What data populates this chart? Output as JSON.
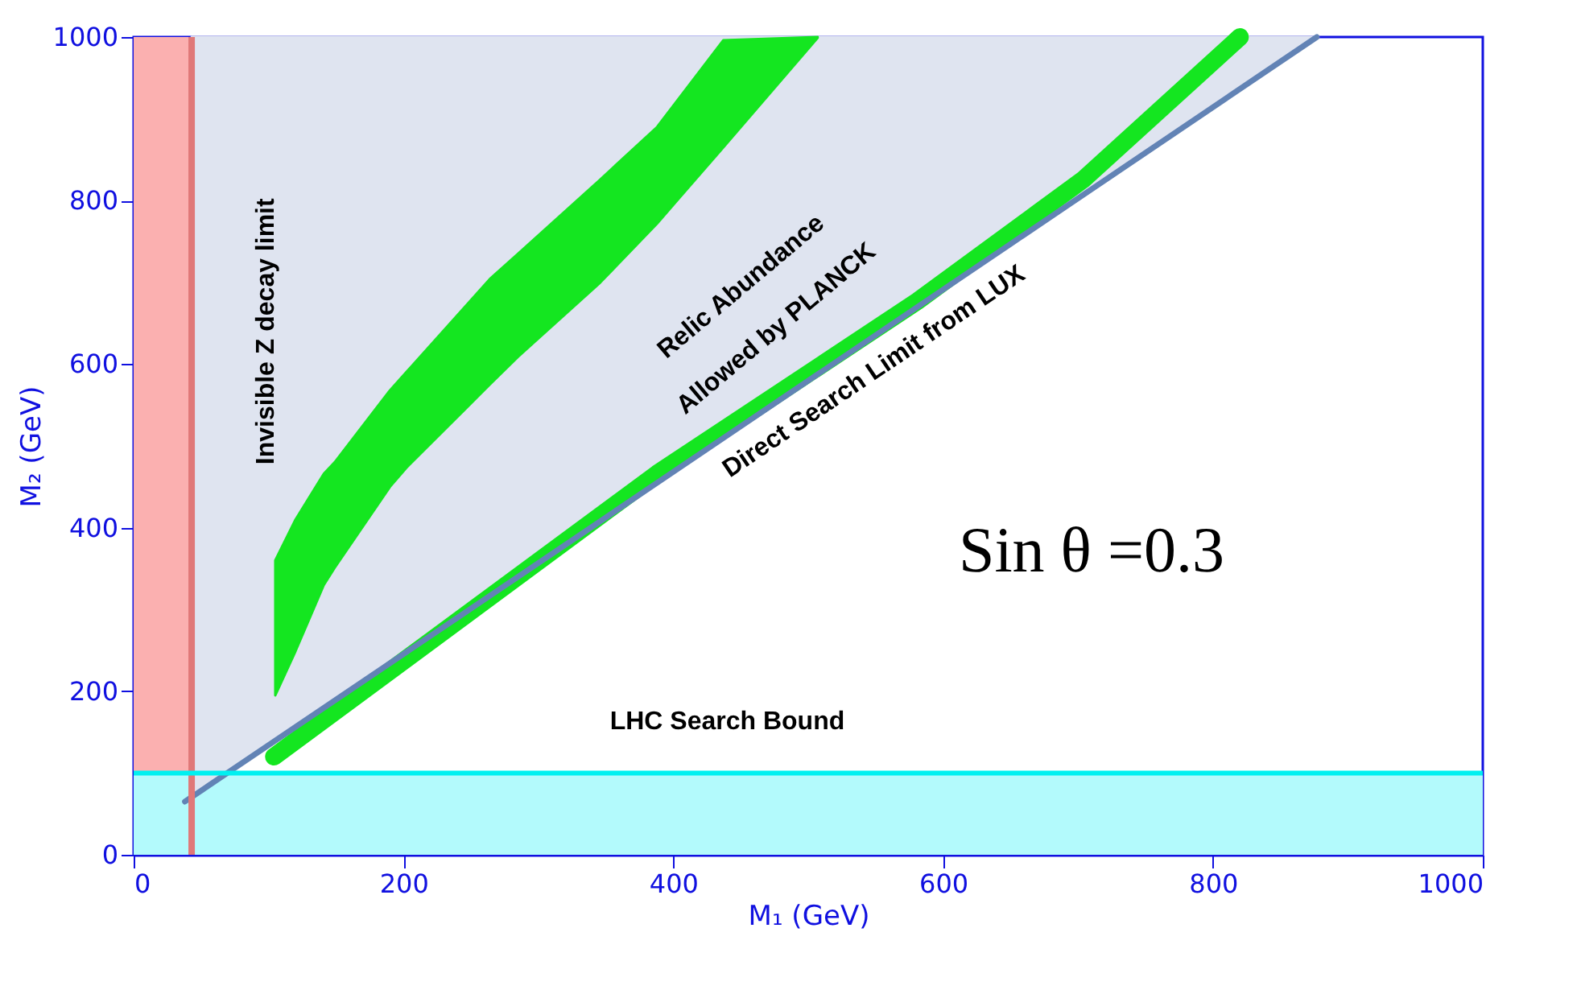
{
  "chart_data": {
    "type": "area",
    "xlabel": "M₁ (GeV)",
    "ylabel": "M₂ (GeV)",
    "xlim": [
      0,
      1000
    ],
    "ylim": [
      0,
      1000
    ],
    "xticks": [
      0,
      200,
      400,
      600,
      800,
      1000
    ],
    "yticks": [
      0,
      200,
      400,
      600,
      800,
      1000
    ],
    "grid": false,
    "bands": [
      {
        "axis": "x",
        "from": 0,
        "to": 43,
        "color": "#fbb0b0"
      },
      {
        "axis": "y",
        "from": 0,
        "to": 100,
        "color": "#b3fafc"
      }
    ],
    "ref_lines": [
      {
        "axis": "x",
        "value": 43,
        "label": "Invisible Z decay limit",
        "color": "#e07878"
      },
      {
        "axis": "y",
        "value": 100,
        "label": "LHC Search Bound",
        "color": "#00f0f0"
      }
    ],
    "series": [
      {
        "color": "#dfe4f0",
        "x": [
          43,
          877,
          43
        ],
        "values": [
          71,
          1000,
          1000
        ]
      },
      {
        "color": "#14e620",
        "x": [
          105,
          120,
          141,
          149,
          190,
          202,
          264,
          285,
          346,
          388,
          437,
          507,
          507,
          437,
          388,
          346,
          285,
          264,
          202,
          190,
          149,
          141,
          120,
          105
        ],
        "values": [
          360,
          410,
          466,
          480,
          568,
          590,
          704,
          735,
          826,
          890,
          996,
          1000,
          999,
          865,
          772,
          700,
          609,
          575,
          473,
          450,
          351,
          330,
          249,
          195
        ]
      },
      {
        "type": "line",
        "color": "#14e620",
        "x": [
          104,
          388,
          581,
          704,
          820
        ],
        "values": [
          120,
          466,
          677,
          826,
          1000
        ]
      },
      {
        "type": "line",
        "name": "Direct Search Limit from LUX",
        "color": "#6283b5",
        "x": [
          38,
          250,
          450,
          650,
          877
        ],
        "values": [
          65,
          301,
          524,
          747,
          1000
        ]
      }
    ],
    "annotations": [
      "Relic Abundance\nAllowed by PLANCK",
      "Sin  θ =0.3"
    ]
  }
}
